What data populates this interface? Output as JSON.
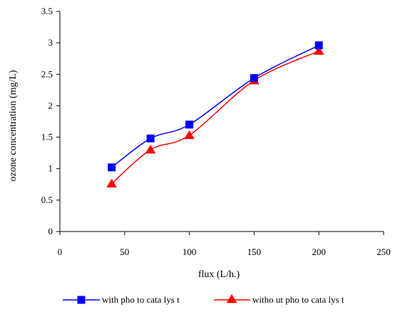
{
  "chart_data": {
    "type": "line",
    "title": "",
    "xlabel": "flux (L/h.)",
    "ylabel": "ozone concentration (mg/L)",
    "xlim": [
      0,
      250
    ],
    "ylim": [
      0,
      3.5
    ],
    "xticks": [
      0,
      50,
      100,
      150,
      200,
      250
    ],
    "xtick_labels": [
      "0",
      "50",
      "100",
      "150",
      "200",
      "250"
    ],
    "yticks": [
      0,
      0.5,
      1,
      1.5,
      2,
      2.5,
      3,
      3.5
    ],
    "ytick_labels": [
      "0",
      "0.5",
      "1",
      "1.5",
      "2",
      "2.5",
      "3",
      "3.5"
    ],
    "grid": false,
    "legend_position": "bottom",
    "series": [
      {
        "name": "with pho to cata lys t",
        "marker": "square",
        "color": "#0000ff",
        "x": [
          40,
          70,
          100,
          150,
          200
        ],
        "y": [
          1.02,
          1.48,
          1.7,
          2.44,
          2.96
        ]
      },
      {
        "name": "witho ut pho to cata lys t",
        "marker": "triangle",
        "color": "#ff0000",
        "x": [
          40,
          70,
          100,
          150,
          200
        ],
        "y": [
          0.76,
          1.3,
          1.53,
          2.4,
          2.87
        ]
      }
    ]
  }
}
